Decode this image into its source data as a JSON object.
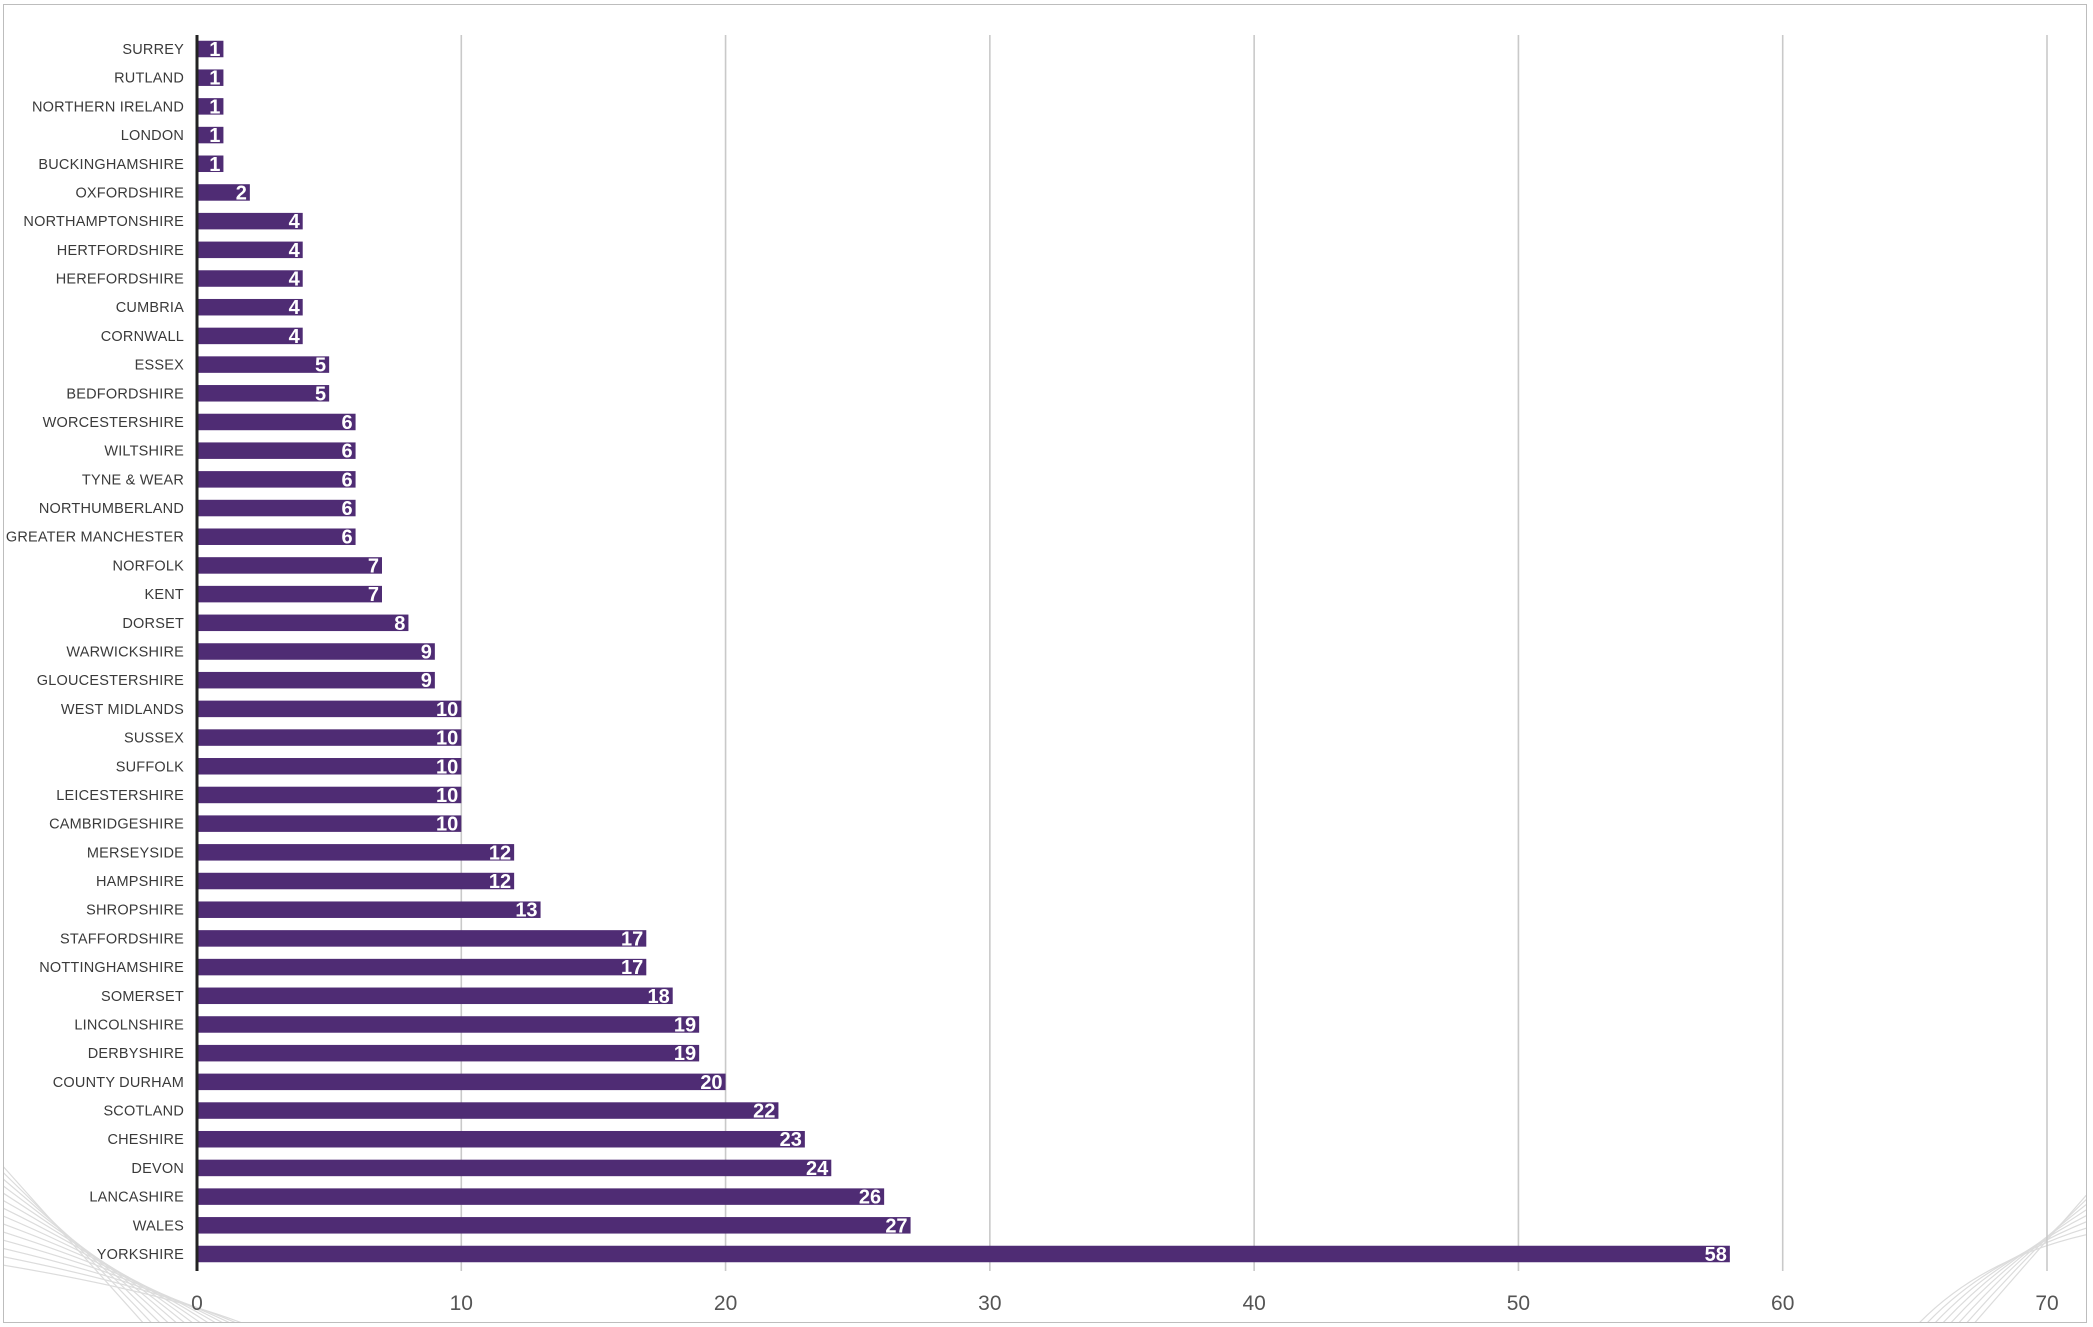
{
  "chart_data": {
    "type": "bar",
    "orientation": "horizontal",
    "title": "",
    "xlabel": "",
    "ylabel": "",
    "xlim": [
      0,
      70
    ],
    "x_ticks": [
      0,
      10,
      20,
      30,
      40,
      50,
      60,
      70
    ],
    "grid": true,
    "legend": "none",
    "bar_color": "#4f2c74",
    "data_label_color": "#ffffff",
    "categories": [
      "SURREY",
      "RUTLAND",
      "NORTHERN IRELAND",
      "LONDON",
      "BUCKINGHAMSHIRE",
      "OXFORDSHIRE",
      "NORTHAMPTONSHIRE",
      "HERTFORDSHIRE",
      "HEREFORDSHIRE",
      "CUMBRIA",
      "CORNWALL",
      "ESSEX",
      "BEDFORDSHIRE",
      "WORCESTERSHIRE",
      "WILTSHIRE",
      "TYNE & WEAR",
      "NORTHUMBERLAND",
      "GREATER MANCHESTER",
      "NORFOLK",
      "KENT",
      "DORSET",
      "WARWICKSHIRE",
      "GLOUCESTERSHIRE",
      "WEST MIDLANDS",
      "SUSSEX",
      "SUFFOLK",
      "LEICESTERSHIRE",
      "CAMBRIDGESHIRE",
      "MERSEYSIDE",
      "HAMPSHIRE",
      "SHROPSHIRE",
      "STAFFORDSHIRE",
      "NOTTINGHAMSHIRE",
      "SOMERSET",
      "LINCOLNSHIRE",
      "DERBYSHIRE",
      "COUNTY DURHAM",
      "SCOTLAND",
      "CHESHIRE",
      "DEVON",
      "LANCASHIRE",
      "WALES",
      "YORKSHIRE"
    ],
    "values": [
      1,
      1,
      1,
      1,
      1,
      2,
      4,
      4,
      4,
      4,
      4,
      5,
      5,
      6,
      6,
      6,
      6,
      6,
      7,
      7,
      8,
      9,
      9,
      10,
      10,
      10,
      10,
      10,
      12,
      12,
      13,
      17,
      17,
      18,
      19,
      19,
      20,
      22,
      23,
      24,
      26,
      27,
      58
    ]
  }
}
